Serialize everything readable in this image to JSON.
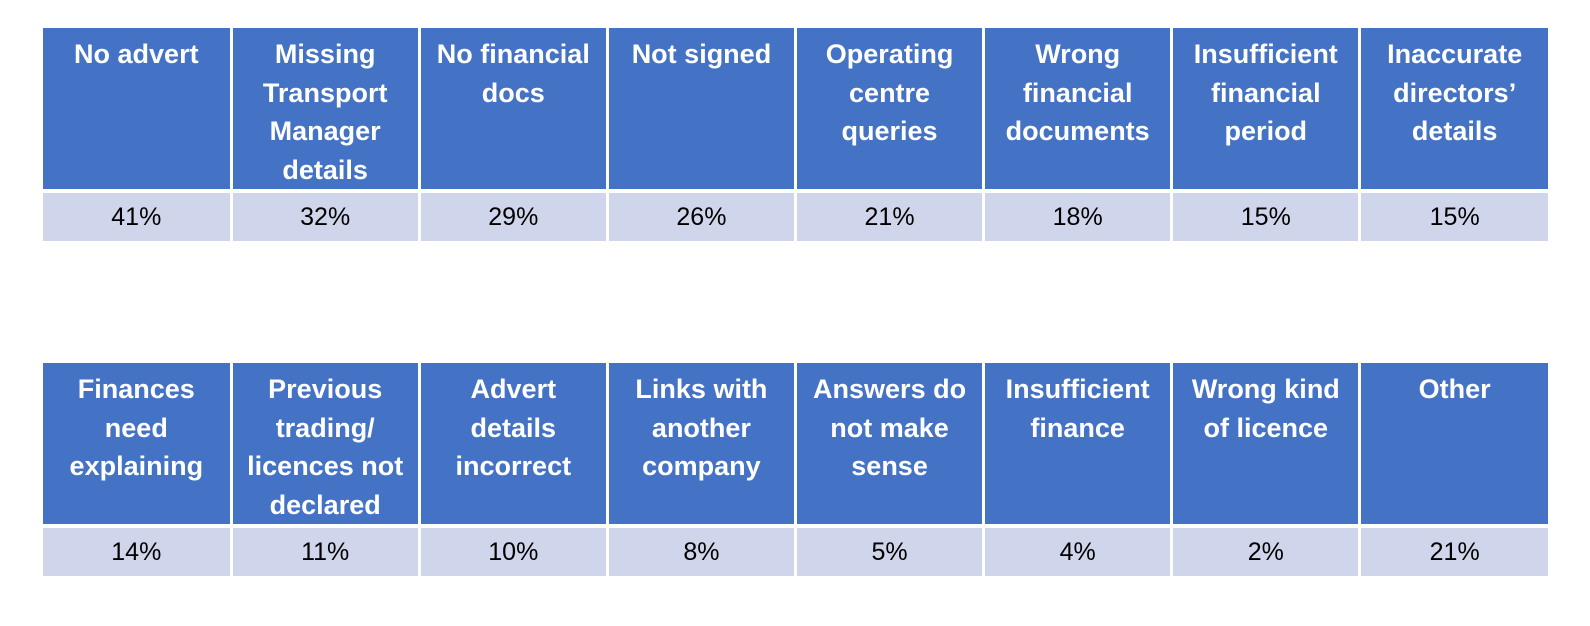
{
  "chart_data": {
    "type": "table",
    "tables": [
      {
        "categories": [
          "No advert",
          "Missing Transport Manager details",
          "No financial docs",
          "Not signed",
          "Operating centre queries",
          "Wrong financial documents",
          "Insufficient financial period",
          "Inaccurate directors’ details"
        ],
        "values": [
          "41%",
          "32%",
          "29%",
          "26%",
          "21%",
          "18%",
          "15%",
          "15%"
        ]
      },
      {
        "categories": [
          "Finances need explaining",
          "Previous trading/ licences not declared",
          "Advert details incorrect",
          "Links with another company",
          "Answers do not make sense",
          "Insufficient finance",
          "Wrong kind of licence",
          "Other"
        ],
        "values": [
          "14%",
          "11%",
          "10%",
          "8%",
          "5%",
          "4%",
          "2%",
          "21%"
        ]
      }
    ]
  },
  "colors": {
    "header_bg": "#4472c4",
    "header_text": "#ffffff",
    "value_bg": "#cfd5ea",
    "value_text": "#000000"
  }
}
